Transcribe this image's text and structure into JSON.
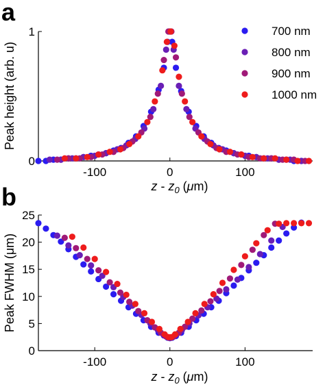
{
  "chart_data": [
    {
      "panel": "a",
      "type": "scatter",
      "xlabel": "z - z0 (μm)",
      "ylabel": "Peak height (arb. u)",
      "xlim": [
        -175,
        190
      ],
      "ylim": [
        0,
        1
      ],
      "x_ticks": [
        -100,
        0,
        100
      ],
      "y_ticks": [
        0,
        1
      ],
      "legend_position": "top-right",
      "series": [
        {
          "name": "700 nm",
          "color": "#2b1cf0",
          "x": [
            -175,
            -165,
            -155,
            -145,
            -135,
            -125,
            -115,
            -105,
            -95,
            -85,
            -75,
            -65,
            -55,
            -45,
            -35,
            -25,
            -15,
            -8,
            -3,
            0,
            3,
            8,
            15,
            25,
            35,
            45,
            55,
            65,
            75,
            85,
            95,
            105,
            115,
            125,
            135,
            145,
            155,
            165,
            175
          ],
          "y": [
            0.0,
            0.0,
            0.01,
            0.01,
            0.02,
            0.02,
            0.03,
            0.04,
            0.05,
            0.06,
            0.08,
            0.1,
            0.14,
            0.19,
            0.27,
            0.38,
            0.55,
            0.72,
            0.92,
            1.0,
            0.92,
            0.72,
            0.54,
            0.38,
            0.27,
            0.19,
            0.14,
            0.1,
            0.08,
            0.06,
            0.05,
            0.04,
            0.03,
            0.02,
            0.02,
            0.01,
            0.01,
            0.0,
            0.0
          ]
        },
        {
          "name": "800 nm",
          "color": "#6a1fb5",
          "x": [
            -160,
            -145,
            -130,
            -115,
            -100,
            -85,
            -70,
            -58,
            -46,
            -34,
            -22,
            -12,
            -5,
            0,
            5,
            12,
            22,
            34,
            46,
            58,
            70,
            85,
            100,
            115,
            130,
            145,
            160,
            175
          ],
          "y": [
            0.01,
            0.01,
            0.02,
            0.03,
            0.04,
            0.06,
            0.09,
            0.12,
            0.17,
            0.25,
            0.4,
            0.58,
            0.86,
            1.0,
            0.86,
            0.58,
            0.4,
            0.25,
            0.17,
            0.12,
            0.09,
            0.06,
            0.04,
            0.03,
            0.02,
            0.01,
            0.01,
            0.0
          ]
        },
        {
          "name": "900 nm",
          "color": "#a01a78",
          "x": [
            -150,
            -135,
            -120,
            -105,
            -90,
            -75,
            -62,
            -50,
            -38,
            -26,
            -16,
            -8,
            -2,
            2,
            8,
            16,
            26,
            38,
            50,
            62,
            75,
            90,
            105,
            120,
            135,
            150,
            165,
            180
          ],
          "y": [
            0.01,
            0.02,
            0.02,
            0.03,
            0.05,
            0.07,
            0.1,
            0.15,
            0.22,
            0.34,
            0.52,
            0.78,
            1.0,
            1.0,
            0.8,
            0.52,
            0.34,
            0.22,
            0.15,
            0.1,
            0.07,
            0.05,
            0.03,
            0.02,
            0.02,
            0.01,
            0.01,
            0.0
          ]
        },
        {
          "name": "1000 nm",
          "color": "#ee1c1c",
          "x": [
            -140,
            -125,
            -110,
            -95,
            -80,
            -66,
            -54,
            -42,
            -30,
            -20,
            -10,
            -4,
            1,
            6,
            12,
            20,
            30,
            42,
            54,
            66,
            80,
            95,
            110,
            125,
            140,
            155,
            170,
            185
          ],
          "y": [
            0.02,
            0.02,
            0.03,
            0.05,
            0.07,
            0.09,
            0.13,
            0.19,
            0.3,
            0.46,
            0.7,
            0.92,
            1.0,
            0.89,
            0.65,
            0.46,
            0.3,
            0.19,
            0.13,
            0.09,
            0.07,
            0.05,
            0.03,
            0.02,
            0.02,
            0.01,
            0.0,
            0.0
          ]
        }
      ]
    },
    {
      "panel": "b",
      "type": "scatter",
      "xlabel": "z - z0 (μm)",
      "ylabel": "Peak FWHM (μm)",
      "xlim": [
        -175,
        190
      ],
      "ylim": [
        0,
        25
      ],
      "x_ticks": [
        -100,
        0,
        100
      ],
      "y_ticks": [
        0,
        5,
        10,
        15,
        20,
        25
      ],
      "series": [
        {
          "name": "700 nm",
          "color": "#2b1cf0",
          "x": [
            -175,
            -165,
            -155,
            -145,
            -135,
            -125,
            -115,
            -105,
            -95,
            -85,
            -75,
            -65,
            -55,
            -45,
            -35,
            -25,
            -15,
            -8,
            -3,
            0,
            3,
            8,
            15,
            25,
            35,
            45,
            55,
            65,
            75,
            85,
            95,
            105,
            115,
            125,
            135,
            145,
            155,
            165,
            175
          ],
          "y": [
            23.5,
            22.5,
            21.3,
            20.1,
            18.7,
            17.3,
            15.9,
            14.6,
            13.2,
            11.8,
            10.4,
            9.2,
            8.0,
            6.8,
            5.6,
            4.4,
            3.3,
            2.8,
            2.4,
            2.3,
            2.4,
            2.7,
            3.3,
            4.4,
            5.6,
            6.8,
            8.0,
            9.2,
            10.6,
            12.0,
            13.4,
            14.8,
            16.2,
            17.6,
            19.0,
            20.3,
            21.6,
            22.7,
            23.6
          ]
        },
        {
          "name": "800 nm",
          "color": "#6a1fb5",
          "x": [
            -150,
            -135,
            -120,
            -105,
            -90,
            -75,
            -62,
            -50,
            -38,
            -26,
            -16,
            -8,
            -2,
            2,
            8,
            16,
            26,
            38,
            50,
            62,
            75,
            90,
            105,
            120,
            135,
            150
          ],
          "y": [
            21.2,
            19.4,
            17.6,
            15.7,
            13.8,
            11.7,
            9.9,
            8.3,
            6.6,
            5.0,
            3.8,
            2.9,
            2.4,
            2.4,
            2.9,
            3.8,
            5.0,
            6.5,
            8.0,
            9.6,
            11.3,
            13.1,
            15.4,
            17.8,
            20.3,
            22.8
          ]
        },
        {
          "name": "900 nm",
          "color": "#a01a78",
          "x": [
            -140,
            -125,
            -110,
            -95,
            -80,
            -66,
            -54,
            -42,
            -30,
            -20,
            -12,
            -5,
            0,
            5,
            12,
            20,
            30,
            42,
            54,
            66,
            80,
            95,
            110,
            125,
            140
          ],
          "y": [
            20.8,
            18.9,
            16.9,
            14.8,
            12.6,
            10.7,
            9.0,
            7.3,
            5.6,
            4.3,
            3.3,
            2.6,
            2.4,
            2.6,
            3.3,
            4.4,
            5.9,
            7.4,
            9.1,
            11.0,
            13.3,
            15.8,
            18.6,
            21.3,
            23.4
          ]
        },
        {
          "name": "1000 nm",
          "color": "#ee1c1c",
          "x": [
            -130,
            -115,
            -100,
            -85,
            -70,
            -58,
            -46,
            -34,
            -24,
            -14,
            -7,
            -2,
            2,
            7,
            14,
            24,
            34,
            46,
            58,
            70,
            85,
            100,
            115,
            130,
            145,
            155,
            165,
            175,
            185
          ],
          "y": [
            21.0,
            19.0,
            16.9,
            14.5,
            12.3,
            10.3,
            8.6,
            6.9,
            5.3,
            4.0,
            3.0,
            2.5,
            2.5,
            3.0,
            4.0,
            5.3,
            6.9,
            8.6,
            10.4,
            12.5,
            14.9,
            17.4,
            19.8,
            22.2,
            23.4,
            23.5,
            23.5,
            23.5,
            23.5
          ]
        }
      ]
    }
  ],
  "panel_labels": [
    "a",
    "b"
  ],
  "axes": {
    "a_x_ticks": [
      "-100",
      "0",
      "100"
    ],
    "a_y_ticks": [
      "0",
      "1"
    ],
    "b_x_ticks": [
      "-100",
      "0",
      "100"
    ],
    "b_y_ticks": [
      "0",
      "5",
      "10",
      "15",
      "20",
      "25"
    ],
    "a_ylabel": "Peak height (arb. u)",
    "b_ylabel": "Peak FWHM (μm)",
    "xlabel_z": "z",
    "xlabel_dash": " - ",
    "xlabel_z0": "z",
    "xlabel_sub": "0",
    "xlabel_unit_open": " (",
    "xlabel_mu": "μ",
    "xlabel_unit_close": "m)"
  },
  "legend": {
    "items": [
      "700 nm",
      "800 nm",
      "900 nm",
      "1000 nm"
    ]
  }
}
